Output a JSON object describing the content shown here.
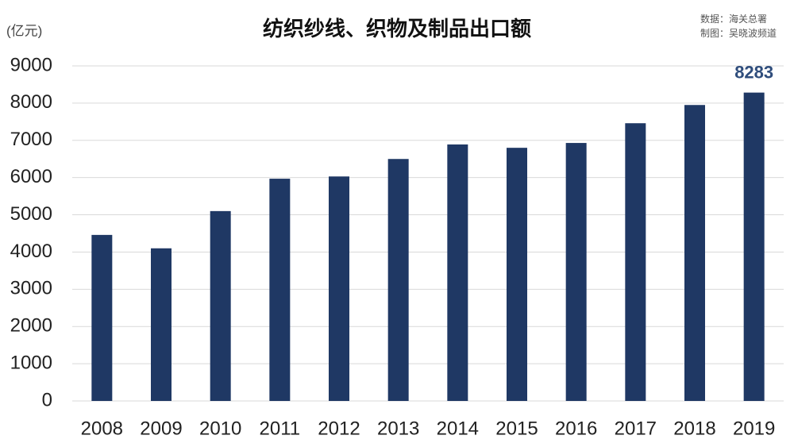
{
  "chart_data": {
    "type": "bar",
    "title": "纺织纱线、织物及制品出口额",
    "y_label": "(亿元)",
    "source": [
      "数据：海关总署",
      "制图：吴晓波频道"
    ],
    "categories": [
      "2008",
      "2009",
      "2010",
      "2011",
      "2012",
      "2013",
      "2014",
      "2015",
      "2016",
      "2017",
      "2018",
      "2019"
    ],
    "values": [
      4460,
      4100,
      5100,
      5970,
      6030,
      6500,
      6890,
      6800,
      6930,
      7460,
      7950,
      8283
    ],
    "value_labels": [
      null,
      null,
      null,
      null,
      null,
      null,
      null,
      null,
      null,
      null,
      null,
      "8283"
    ],
    "color": "#1f3864",
    "ylim": [
      0,
      9000
    ],
    "yticks": [
      0,
      1000,
      2000,
      3000,
      4000,
      5000,
      6000,
      7000,
      8000,
      9000
    ],
    "grid": true
  }
}
